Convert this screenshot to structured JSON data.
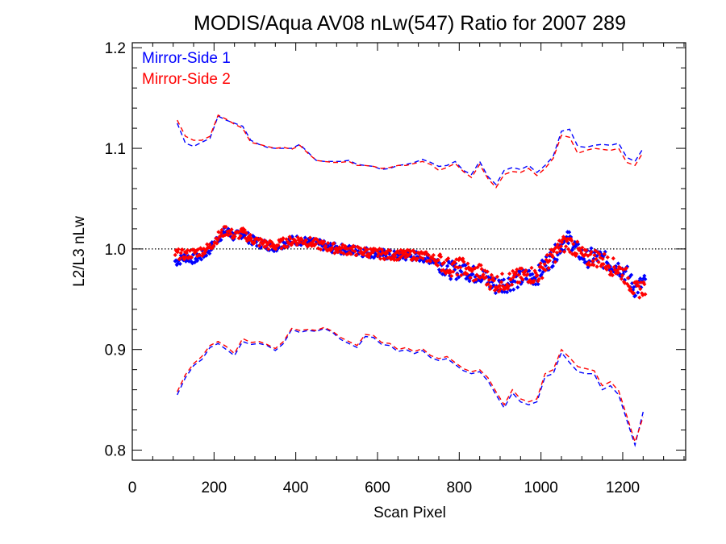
{
  "chart_data": {
    "type": "line",
    "title": "MODIS/Aqua AV08 nLw(547) Ratio for 2007 289",
    "xlabel": "Scan Pixel",
    "ylabel": "L2/L3 nLw",
    "xlim": [
      0,
      1354
    ],
    "ylim": [
      0.79,
      1.205
    ],
    "xticks": [
      0,
      200,
      400,
      600,
      800,
      1000,
      1200
    ],
    "xtick_labels": [
      "0",
      "200",
      "400",
      "600",
      "800",
      "1000",
      "1200"
    ],
    "yticks": [
      0.8,
      0.9,
      1.0,
      1.1,
      1.2
    ],
    "ytick_labels": [
      "0.8",
      "0.9",
      "1.0",
      "1.1",
      "1.2"
    ],
    "reference_line": {
      "y": 1.0,
      "style": "dotted"
    },
    "legend_position": "top-left",
    "colors": {
      "ms1": "#0000ff",
      "ms2": "#ff0000"
    },
    "series": [
      {
        "name": "Mirror-Side 1",
        "color": "#0000ff",
        "x": [
          110,
          130,
          150,
          170,
          190,
          210,
          230,
          250,
          270,
          290,
          310,
          330,
          350,
          370,
          390,
          410,
          430,
          450,
          470,
          490,
          510,
          530,
          550,
          570,
          590,
          610,
          630,
          650,
          670,
          690,
          710,
          730,
          750,
          770,
          790,
          810,
          830,
          850,
          870,
          890,
          910,
          930,
          950,
          970,
          990,
          1010,
          1030,
          1050,
          1070,
          1090,
          1110,
          1130,
          1150,
          1170,
          1190,
          1210,
          1230,
          1250
        ],
        "ratio_mean": [
          0.988,
          0.992,
          0.99,
          0.993,
          1.0,
          1.011,
          1.018,
          1.012,
          1.016,
          1.009,
          1.006,
          1.004,
          1.002,
          1.006,
          1.008,
          1.009,
          1.006,
          1.005,
          1.003,
          1.001,
          1.0,
          0.999,
          0.998,
          0.997,
          0.996,
          0.995,
          0.994,
          0.993,
          0.993,
          0.993,
          0.992,
          0.99,
          0.987,
          0.98,
          0.978,
          0.982,
          0.974,
          0.976,
          0.968,
          0.963,
          0.965,
          0.968,
          0.97,
          0.973,
          0.972,
          0.985,
          0.992,
          1.005,
          1.01,
          0.998,
          0.99,
          0.993,
          0.99,
          0.985,
          0.982,
          0.975,
          0.96,
          0.966
        ],
        "upper": [
          1.125,
          1.105,
          1.102,
          1.106,
          1.11,
          1.132,
          1.128,
          1.125,
          1.122,
          1.108,
          1.104,
          1.101,
          1.1,
          1.1,
          1.1,
          1.104,
          1.096,
          1.088,
          1.087,
          1.087,
          1.087,
          1.088,
          1.084,
          1.083,
          1.082,
          1.079,
          1.08,
          1.083,
          1.084,
          1.086,
          1.089,
          1.086,
          1.082,
          1.083,
          1.087,
          1.078,
          1.074,
          1.087,
          1.072,
          1.064,
          1.078,
          1.081,
          1.079,
          1.083,
          1.076,
          1.083,
          1.092,
          1.117,
          1.119,
          1.102,
          1.101,
          1.103,
          1.104,
          1.103,
          1.105,
          1.091,
          1.087,
          1.1
        ]
      },
      {
        "name": "Mirror-Side 2",
        "color": "#ff0000",
        "x": [
          110,
          130,
          150,
          170,
          190,
          210,
          230,
          250,
          270,
          290,
          310,
          330,
          350,
          370,
          390,
          410,
          430,
          450,
          470,
          490,
          510,
          530,
          550,
          570,
          590,
          610,
          630,
          650,
          670,
          690,
          710,
          730,
          750,
          770,
          790,
          810,
          830,
          850,
          870,
          890,
          910,
          930,
          950,
          970,
          990,
          1010,
          1030,
          1050,
          1070,
          1090,
          1110,
          1130,
          1150,
          1170,
          1190,
          1210,
          1230,
          1250
        ],
        "ratio_mean": [
          0.995,
          0.994,
          0.996,
          0.998,
          1.002,
          1.012,
          1.019,
          1.013,
          1.016,
          1.01,
          1.007,
          1.004,
          1.003,
          1.006,
          1.008,
          1.009,
          1.007,
          1.005,
          1.003,
          1.001,
          1.0,
          0.999,
          0.998,
          0.997,
          0.996,
          0.995,
          0.994,
          0.994,
          0.994,
          0.994,
          0.993,
          0.991,
          0.988,
          0.983,
          0.981,
          0.983,
          0.975,
          0.977,
          0.97,
          0.966,
          0.967,
          0.97,
          0.972,
          0.975,
          0.973,
          0.984,
          0.993,
          1.004,
          1.006,
          0.998,
          0.99,
          0.992,
          0.989,
          0.983,
          0.98,
          0.972,
          0.958,
          0.962
        ],
        "upper": [
          1.128,
          1.112,
          1.108,
          1.108,
          1.112,
          1.133,
          1.129,
          1.124,
          1.12,
          1.106,
          1.104,
          1.102,
          1.1,
          1.101,
          1.099,
          1.103,
          1.095,
          1.088,
          1.087,
          1.086,
          1.086,
          1.087,
          1.083,
          1.083,
          1.082,
          1.08,
          1.081,
          1.083,
          1.083,
          1.085,
          1.087,
          1.084,
          1.078,
          1.081,
          1.085,
          1.077,
          1.071,
          1.084,
          1.07,
          1.061,
          1.074,
          1.077,
          1.076,
          1.08,
          1.073,
          1.08,
          1.09,
          1.113,
          1.111,
          1.095,
          1.098,
          1.1,
          1.099,
          1.098,
          1.1,
          1.086,
          1.083,
          1.096
        ]
      }
    ],
    "lower_envelope": {
      "x": [
        110,
        130,
        150,
        170,
        190,
        210,
        230,
        250,
        270,
        290,
        310,
        330,
        350,
        370,
        390,
        410,
        430,
        450,
        470,
        490,
        510,
        530,
        550,
        570,
        590,
        610,
        630,
        650,
        670,
        690,
        710,
        730,
        750,
        770,
        790,
        810,
        830,
        850,
        870,
        890,
        910,
        930,
        950,
        970,
        990,
        1010,
        1030,
        1050,
        1070,
        1090,
        1110,
        1130,
        1150,
        1170,
        1190,
        1210,
        1230,
        1250
      ],
      "ms1": [
        0.855,
        0.872,
        0.884,
        0.89,
        0.902,
        0.906,
        0.9,
        0.894,
        0.908,
        0.905,
        0.906,
        0.904,
        0.899,
        0.906,
        0.92,
        0.917,
        0.919,
        0.918,
        0.921,
        0.917,
        0.91,
        0.906,
        0.902,
        0.913,
        0.912,
        0.905,
        0.904,
        0.898,
        0.9,
        0.896,
        0.899,
        0.892,
        0.889,
        0.891,
        0.885,
        0.879,
        0.876,
        0.878,
        0.869,
        0.855,
        0.842,
        0.857,
        0.848,
        0.845,
        0.848,
        0.873,
        0.876,
        0.897,
        0.887,
        0.878,
        0.876,
        0.876,
        0.86,
        0.864,
        0.855,
        0.83,
        0.805,
        0.838
      ],
      "ms2": [
        0.858,
        0.875,
        0.886,
        0.893,
        0.904,
        0.908,
        0.903,
        0.896,
        0.911,
        0.907,
        0.908,
        0.905,
        0.901,
        0.908,
        0.921,
        0.919,
        0.92,
        0.919,
        0.922,
        0.918,
        0.912,
        0.908,
        0.904,
        0.915,
        0.914,
        0.907,
        0.906,
        0.9,
        0.902,
        0.898,
        0.901,
        0.894,
        0.891,
        0.893,
        0.887,
        0.881,
        0.878,
        0.88,
        0.872,
        0.858,
        0.845,
        0.86,
        0.851,
        0.848,
        0.851,
        0.876,
        0.88,
        0.9,
        0.892,
        0.883,
        0.881,
        0.879,
        0.864,
        0.868,
        0.859,
        0.834,
        0.808,
        0.833
      ]
    }
  }
}
